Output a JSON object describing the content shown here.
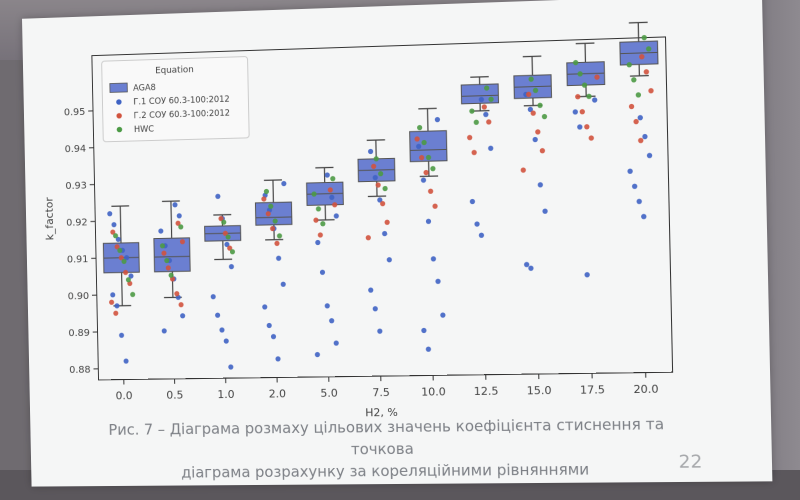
{
  "slide": {
    "caption_line1": "Рис. 7 – Діаграма розмаху цільових значень коефіцієнта стиснення та точкова",
    "caption_line2": "діаграма розрахунку за кореляційними рівняннями",
    "page_number": "22"
  },
  "chart_data": {
    "type": "box+strip",
    "xlabel": "H2, %",
    "ylabel": "k_factor",
    "ylim": [
      0.877,
      0.965
    ],
    "yticks": [
      0.88,
      0.89,
      0.9,
      0.91,
      0.92,
      0.93,
      0.94,
      0.95
    ],
    "ytick_labels": [
      "0.88",
      "0.89",
      "0.90",
      "0.91",
      "0.92",
      "0.93",
      "0.94",
      "0.95"
    ],
    "categories": [
      "0.0",
      "0.5",
      "1.0",
      "2.0",
      "5.0",
      "7.5",
      "10.0",
      "12.5",
      "15.0",
      "17.5",
      "20.0"
    ],
    "legend": {
      "title": "Equation",
      "placement": "top-left",
      "entries": [
        {
          "label": "AGA8",
          "marker": "box",
          "color": "#6b7fd1"
        },
        {
          "label": "Г.1 СОУ 60.3-100:2012",
          "marker": "dot",
          "color": "#3f63c4"
        },
        {
          "label": "Г.2 СОУ 60.3-100:2012",
          "marker": "dot",
          "color": "#d1533e"
        },
        {
          "label": "HWC",
          "marker": "dot",
          "color": "#4c9a45"
        }
      ]
    },
    "box_color": "#6b7fd1",
    "boxes": [
      {
        "category": "0.0",
        "whislo": 0.897,
        "q1": 0.906,
        "med": 0.91,
        "q3": 0.914,
        "whishi": 0.924
      },
      {
        "category": "0.5",
        "whislo": 0.899,
        "q1": 0.906,
        "med": 0.91,
        "q3": 0.915,
        "whishi": 0.925
      },
      {
        "category": "1.0",
        "whislo": 0.909,
        "q1": 0.914,
        "med": 0.916,
        "q3": 0.918,
        "whishi": 0.921
      },
      {
        "category": "2.0",
        "whislo": 0.914,
        "q1": 0.918,
        "med": 0.92,
        "q3": 0.924,
        "whishi": 0.93
      },
      {
        "category": "5.0",
        "whislo": 0.919,
        "q1": 0.923,
        "med": 0.926,
        "q3": 0.929,
        "whishi": 0.933
      },
      {
        "category": "7.5",
        "whislo": 0.925,
        "q1": 0.929,
        "med": 0.932,
        "q3": 0.935,
        "whishi": 0.94
      },
      {
        "category": "10.0",
        "whislo": 0.93,
        "q1": 0.934,
        "med": 0.937,
        "q3": 0.942,
        "whishi": 0.948
      },
      {
        "category": "12.5",
        "whislo": 0.947,
        "q1": 0.949,
        "med": 0.951,
        "q3": 0.954,
        "whishi": 0.956
      },
      {
        "category": "15.0",
        "whislo": 0.948,
        "q1": 0.95,
        "med": 0.953,
        "q3": 0.956,
        "whishi": 0.961
      },
      {
        "category": "17.5",
        "whislo": 0.95,
        "q1": 0.953,
        "med": 0.956,
        "q3": 0.959,
        "whishi": 0.964
      },
      {
        "category": "20.0",
        "whislo": 0.955,
        "q1": 0.958,
        "med": 0.961,
        "q3": 0.964,
        "whishi": 0.969
      }
    ],
    "series": [
      {
        "name": "Г.1 СОУ 60.3-100:2012",
        "color": "#3f63c4",
        "points": [
          {
            "category": "0.0",
            "values": [
              0.922,
              0.919,
              0.915,
              0.912,
              0.91,
              0.905,
              0.9,
              0.897,
              0.889,
              0.882
            ]
          },
          {
            "category": "0.5",
            "values": [
              0.924,
              0.921,
              0.917,
              0.913,
              0.909,
              0.904,
              0.899,
              0.894,
              0.89
            ]
          },
          {
            "category": "1.0",
            "values": [
              0.926,
              0.92,
              0.913,
              0.907,
              0.899,
              0.894,
              0.89,
              0.887,
              0.88
            ]
          },
          {
            "category": "2.0",
            "values": [
              0.929,
              0.926,
              0.922,
              0.917,
              0.909,
              0.902,
              0.896,
              0.891,
              0.888,
              0.882
            ]
          },
          {
            "category": "5.0",
            "values": [
              0.931,
              0.925,
              0.92,
              0.913,
              0.905,
              0.896,
              0.892,
              0.886,
              0.883
            ]
          },
          {
            "category": "7.5",
            "values": [
              0.937,
              0.93,
              0.924,
              0.915,
              0.908,
              0.9,
              0.895,
              0.889
            ]
          },
          {
            "category": "10.0",
            "values": [
              0.945,
              0.938,
              0.929,
              0.918,
              0.908,
              0.902,
              0.893,
              0.889,
              0.884
            ]
          },
          {
            "category": "12.5",
            "values": [
              0.95,
              0.946,
              0.937,
              0.923,
              0.917,
              0.914
            ]
          },
          {
            "category": "15.0",
            "values": [
              0.951,
              0.947,
              0.939,
              0.927,
              0.92,
              0.906,
              0.905
            ]
          },
          {
            "category": "17.5",
            "values": [
              0.949,
              0.946,
              0.942,
              0.903
            ]
          },
          {
            "category": "20.0",
            "values": [
              0.944,
              0.939,
              0.934,
              0.93,
              0.926,
              0.922,
              0.918
            ]
          }
        ]
      },
      {
        "name": "Г.2 СОУ 60.3-100:2012",
        "color": "#d1533e",
        "points": [
          {
            "category": "0.0",
            "values": [
              0.917,
              0.913,
              0.91,
              0.906,
              0.903,
              0.898,
              0.895
            ]
          },
          {
            "category": "0.5",
            "values": [
              0.919,
              0.914,
              0.911,
              0.907,
              0.904,
              0.9,
              0.897
            ]
          },
          {
            "category": "1.0",
            "values": [
              0.92,
              0.916,
              0.912
            ]
          },
          {
            "category": "2.0",
            "values": [
              0.925,
              0.921,
              0.917,
              0.913
            ]
          },
          {
            "category": "5.0",
            "values": [
              0.927,
              0.923,
              0.919,
              0.915
            ]
          },
          {
            "category": "7.5",
            "values": [
              0.933,
              0.928,
              0.923,
              0.918,
              0.914
            ]
          },
          {
            "category": "10.0",
            "values": [
              0.94,
              0.935,
              0.931,
              0.926,
              0.922
            ]
          },
          {
            "category": "12.5",
            "values": [
              0.948,
              0.944,
              0.94,
              0.936
            ]
          },
          {
            "category": "15.0",
            "values": [
              0.951,
              0.946,
              0.941,
              0.936,
              0.931
            ]
          },
          {
            "category": "17.5",
            "values": [
              0.955,
              0.95,
              0.946,
              0.942,
              0.939
            ]
          },
          {
            "category": "20.0",
            "values": [
              0.96,
              0.956,
              0.951,
              0.947,
              0.943,
              0.938
            ]
          }
        ]
      },
      {
        "name": "HWC",
        "color": "#4c9a45",
        "points": [
          {
            "category": "0.0",
            "values": [
              0.916,
              0.912,
              0.909,
              0.904,
              0.9
            ]
          },
          {
            "category": "0.5",
            "values": [
              0.918,
              0.913,
              0.909,
              0.905
            ]
          },
          {
            "category": "1.0",
            "values": [
              0.919,
              0.915,
              0.911
            ]
          },
          {
            "category": "2.0",
            "values": [
              0.927,
              0.923,
              0.919,
              0.915
            ]
          },
          {
            "category": "5.0",
            "values": [
              0.93,
              0.926,
              0.922,
              0.918
            ]
          },
          {
            "category": "7.5",
            "values": [
              0.935,
              0.931,
              0.927
            ]
          },
          {
            "category": "10.0",
            "values": [
              0.943,
              0.939,
              0.935,
              0.932
            ]
          },
          {
            "category": "12.5",
            "values": [
              0.953,
              0.95,
              0.947,
              0.944
            ]
          },
          {
            "category": "15.0",
            "values": [
              0.955,
              0.952,
              0.948,
              0.945
            ]
          },
          {
            "category": "17.5",
            "values": [
              0.959,
              0.956,
              0.953,
              0.95
            ]
          },
          {
            "category": "20.0",
            "values": [
              0.965,
              0.962,
              0.958,
              0.954,
              0.95
            ]
          }
        ]
      }
    ],
    "grid": false
  }
}
